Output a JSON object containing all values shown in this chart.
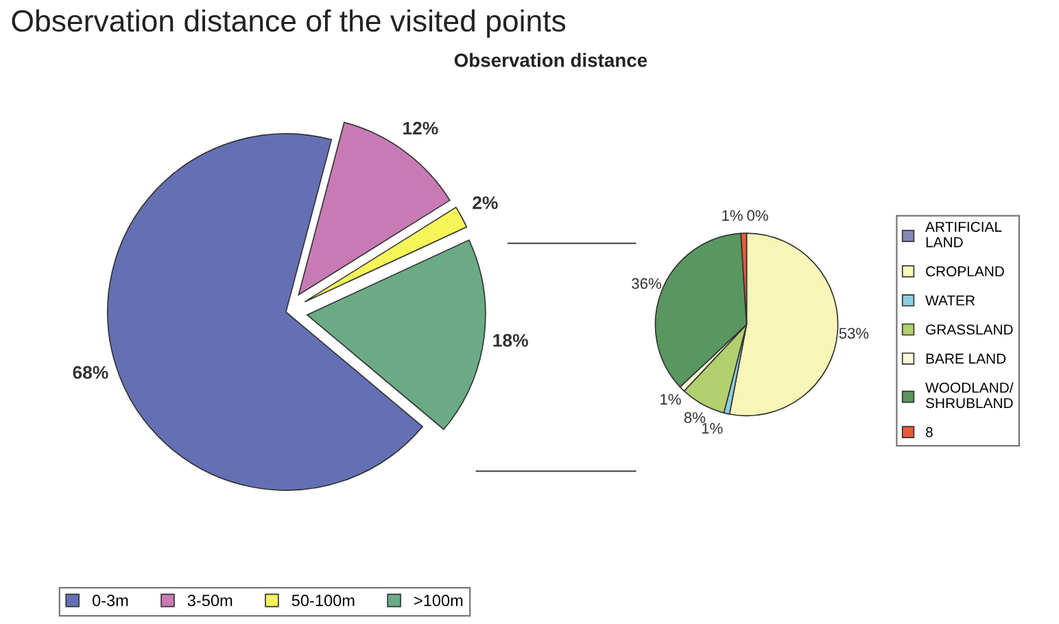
{
  "chart_data": [
    {
      "type": "pie",
      "title": "Observation distance of the visited points",
      "subtitle": "Observation distance",
      "categories": [
        "0-3m",
        "3-50m",
        "50-100m",
        ">100m"
      ],
      "values": [
        68,
        12,
        2,
        18
      ],
      "value_labels": [
        "68%",
        "12%",
        "2%",
        "18%"
      ],
      "colors": [
        "#6470b4",
        "#c87ab4",
        "#f5f55a",
        "#6aab86"
      ],
      "data_labels": true,
      "legend": "bottom"
    },
    {
      "type": "pie",
      "categories": [
        "ARTIFICIAL\nLAND",
        "CROPLAND",
        "WATER",
        "GRASSLAND",
        "BARE LAND",
        "WOODLAND/\nSHRUBLAND",
        "8"
      ],
      "values": [
        0,
        53,
        1,
        8,
        1,
        36,
        1
      ],
      "value_labels": [
        "0%",
        "53%",
        "1%",
        "8%",
        "1%",
        "36%",
        "1%"
      ],
      "colors": [
        "#8888b8",
        "#f8f5b8",
        "#8ccfe0",
        "#b2d06e",
        "#f8f8d8",
        "#5a9660",
        "#e85a3a"
      ],
      "data_labels": true,
      "legend": "right"
    }
  ]
}
